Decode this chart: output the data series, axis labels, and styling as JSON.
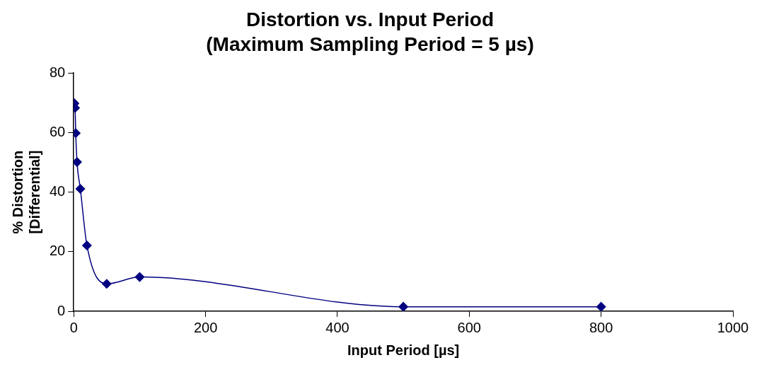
{
  "chart_data": {
    "type": "line",
    "title": "Distortion vs. Input Period",
    "subtitle": "(Maximum Sampling Period = 5 µs)",
    "xlabel": "Input Period [µs]",
    "ylabel": "% Distortion\n[Differential]",
    "x": [
      1,
      2,
      3,
      5,
      10,
      20,
      50,
      100,
      500,
      800
    ],
    "series": [
      {
        "color": "#000080",
        "values": [
          69.8,
          68.3,
          59.8,
          50.1,
          41.1,
          22.1,
          9.2,
          11.5,
          1.5,
          1.5
        ]
      }
    ],
    "xlim": [
      0,
      1000
    ],
    "xticks": [
      0,
      200,
      400,
      600,
      800,
      1000
    ],
    "ylim": [
      0,
      80
    ],
    "yticks": [
      0,
      20,
      40,
      60,
      80
    ],
    "grid": false,
    "legend": false,
    "marker": "diamond",
    "line_style": "solid"
  }
}
